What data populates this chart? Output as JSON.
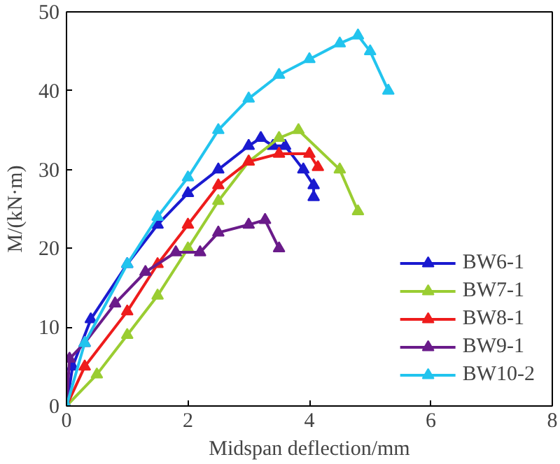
{
  "chart_data": {
    "type": "line",
    "xlabel": "Midspan deflection/mm",
    "ylabel": "M/(kN·m)",
    "xlim": [
      0,
      8
    ],
    "ylim": [
      0,
      50
    ],
    "xticks": [
      0,
      2,
      4,
      6,
      8
    ],
    "yticks": [
      0,
      10,
      20,
      30,
      40,
      50
    ],
    "grid": false,
    "legend": "bottom right",
    "marker": "triangle",
    "line_style": "solid",
    "series": [
      {
        "name": "BW6-1",
        "color": "#1a1ad0",
        "x": [
          0,
          0.1,
          0.4,
          1,
          1.5,
          2,
          2.5,
          3,
          3.2,
          3.4,
          3.6,
          3.9,
          4.07,
          4.07
        ],
        "values": [
          0,
          5,
          11,
          18,
          23,
          27,
          30,
          33,
          34,
          33,
          33,
          30,
          28,
          26.5
        ]
      },
      {
        "name": "BW7-1",
        "color": "#9acd32",
        "x": [
          0,
          0.5,
          1,
          1.5,
          2,
          2.5,
          3,
          3.5,
          3.82,
          4.5,
          4.8
        ],
        "values": [
          0,
          4,
          9,
          14,
          20,
          26,
          31,
          34,
          35,
          30,
          24.7
        ]
      },
      {
        "name": "BW8-1",
        "color": "#ee1c1c",
        "x": [
          0,
          0.3,
          1,
          1.5,
          2,
          2.5,
          3,
          3.5,
          4,
          4.14
        ],
        "values": [
          0,
          5,
          12,
          18,
          23,
          28,
          31,
          32,
          32,
          30.3
        ]
      },
      {
        "name": "BW9-1",
        "color": "#6a1b8a",
        "x": [
          0,
          0.05,
          0.3,
          0.8,
          1.3,
          1.8,
          2.2,
          2.5,
          3,
          3.27,
          3.5
        ],
        "values": [
          0,
          6,
          8,
          13,
          17,
          19.5,
          19.5,
          22,
          23,
          23.6,
          20
        ]
      },
      {
        "name": "BW10-2",
        "color": "#22c4ee",
        "x": [
          0,
          0.3,
          1,
          1.5,
          2,
          2.5,
          3,
          3.5,
          4,
          4.5,
          4.8,
          5.0,
          5.3
        ],
        "values": [
          0,
          8,
          18,
          24,
          29,
          35,
          39,
          42,
          44,
          46,
          47,
          45,
          40
        ]
      }
    ]
  }
}
